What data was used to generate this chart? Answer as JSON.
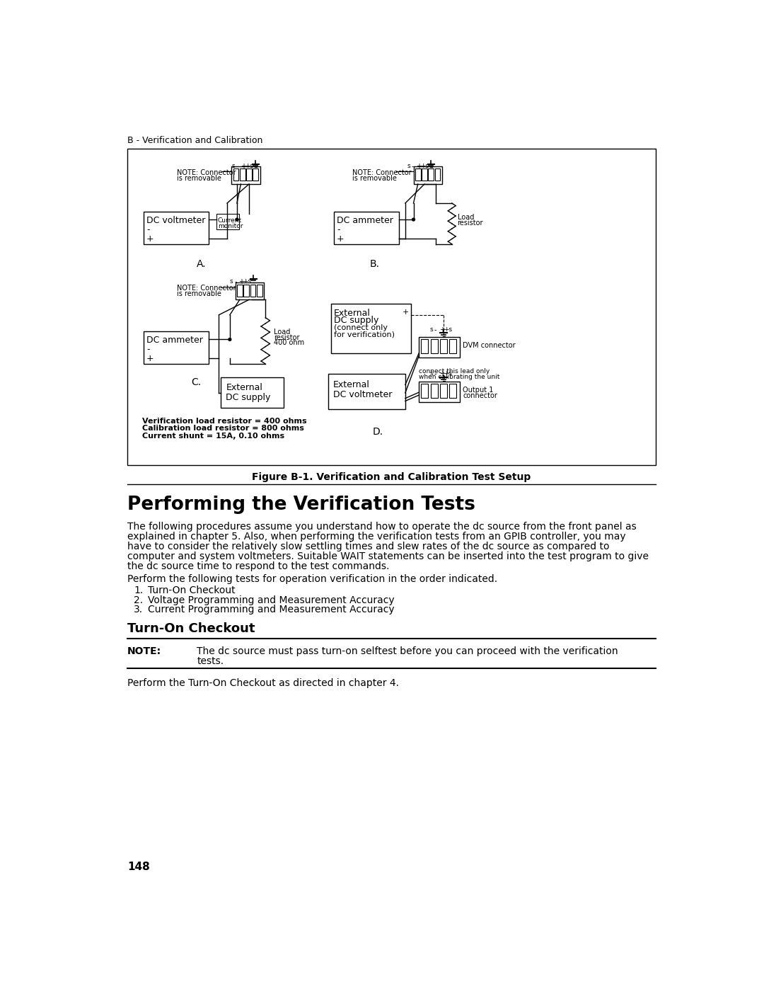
{
  "page_header": "B - Verification and Calibration",
  "figure_caption": "Figure B-1. Verification and Calibration Test Setup",
  "section_title": "Performing the Verification Tests",
  "section_body_lines": [
    "The following procedures assume you understand how to operate the dc source from the front panel as",
    "explained in chapter 5. Also, when performing the verification tests from an GPIB controller, you may",
    "have to consider the relatively slow settling times and slew rates of the dc source as compared to",
    "computer and system voltmeters. Suitable WAIT statements can be inserted into the test program to give",
    "the dc source time to respond to the test commands."
  ],
  "list_intro": "Perform the following tests for operation verification in the order indicated.",
  "list_items": [
    "Turn-On Checkout",
    "Voltage Programming and Measurement Accuracy",
    "Current Programming and Measurement Accuracy"
  ],
  "subsection_title": "Turn-On Checkout",
  "note_label": "NOTE:",
  "note_line1": "The dc source must pass turn-on selftest before you can proceed with the verification",
  "note_line2": "tests.",
  "footer_text": "Perform the Turn-On Checkout as directed in chapter 4.",
  "page_number": "148",
  "bg_color": "#ffffff"
}
